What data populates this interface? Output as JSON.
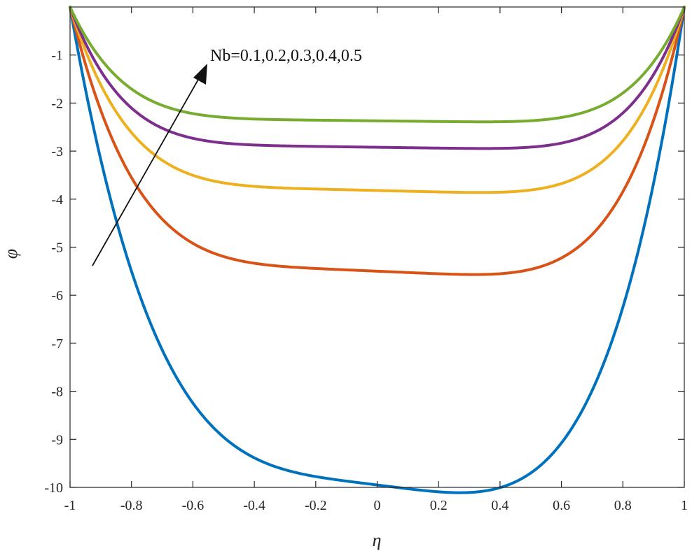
{
  "chart_data": {
    "type": "line",
    "title": "",
    "xlabel": "η",
    "ylabel": "φ",
    "xlim": [
      -1,
      1
    ],
    "ylim": [
      -10,
      0
    ],
    "xticks": [
      -1,
      -0.8,
      -0.6,
      -0.4,
      -0.2,
      0,
      0.2,
      0.4,
      0.6,
      0.8,
      1
    ],
    "xtick_labels": [
      "-1",
      "-0.8",
      "-0.6",
      "-0.4",
      "-0.2",
      "0",
      "0.2",
      "0.4",
      "0.6",
      "0.8",
      "1"
    ],
    "yticks": [
      -1,
      -2,
      -3,
      -4,
      -5,
      -6,
      -7,
      -8,
      -9,
      -10
    ],
    "ytick_labels": [
      "-1",
      "-2",
      "-3",
      "-4",
      "-5",
      "-6",
      "-7",
      "-8",
      "-9",
      "-10"
    ],
    "grid": false,
    "annotation": {
      "text": "Nb=0.1,0.2,0.3,0.4,0.5",
      "arrow": true
    },
    "series": [
      {
        "name": "Nb=0.1",
        "color": "#0072BD",
        "min": -9.95,
        "power": 4,
        "tilt": 0.08
      },
      {
        "name": "Nb=0.2",
        "color": "#D95319",
        "min": -5.5,
        "power": 5,
        "tilt": 0.05
      },
      {
        "name": "Nb=0.3",
        "color": "#EDB120",
        "min": -3.82,
        "power": 5.5,
        "tilt": 0.04
      },
      {
        "name": "Nb=0.4",
        "color": "#7E2F8E",
        "min": -2.92,
        "power": 6,
        "tilt": 0.03
      },
      {
        "name": "Nb=0.5",
        "color": "#77AC30",
        "min": -2.37,
        "power": 6,
        "tilt": 0.03
      }
    ]
  }
}
